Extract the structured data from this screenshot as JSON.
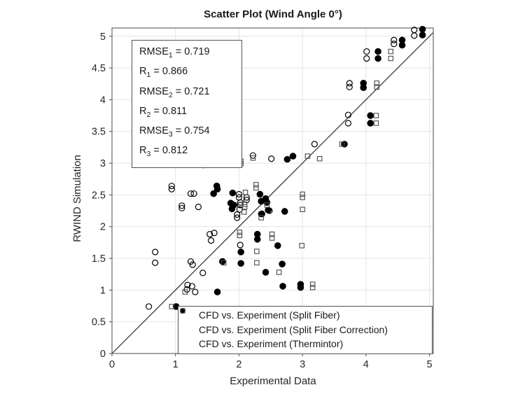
{
  "title": "Scatter Plot (Wind Angle 0°)",
  "stats_box": {
    "lines": [
      {
        "base": "RMSE",
        "sub": "1",
        "value": "0.719"
      },
      {
        "base": "R",
        "sub": "1",
        "value": "0.866"
      },
      {
        "base": "RMSE",
        "sub": "2",
        "value": "0.721"
      },
      {
        "base": "R",
        "sub": "2",
        "value": "0.811"
      },
      {
        "base": "RMSE",
        "sub": "3",
        "value": "0.754"
      },
      {
        "base": "R",
        "sub": "3",
        "value": "0.812"
      }
    ]
  },
  "colors": {
    "marker": "#000000",
    "square_marker": "#4a4a4a",
    "axis": "#666666",
    "grid": "#e4e4e4",
    "text": "#262626",
    "line": "#1a1a1a",
    "background": "#ffffff"
  },
  "chart_data": {
    "type": "scatter",
    "title": "Scatter Plot (Wind Angle 0°)",
    "xlabel": "Experimental Data",
    "ylabel": "RWIND Simulation",
    "xlim": [
      0,
      5.06
    ],
    "ylim": [
      0,
      5.13
    ],
    "xticks": [
      0,
      1,
      2,
      3,
      4,
      5
    ],
    "yticks": [
      0,
      0.5,
      1,
      1.5,
      2,
      2.5,
      3,
      3.5,
      4,
      4.5,
      5
    ],
    "grid": true,
    "legend_position": "south-east-inside",
    "reference_line": {
      "type": "identity",
      "label": "y = x"
    },
    "series": [
      {
        "name": "CFD vs. Experiment (Split Fiber)",
        "marker": "open-circle",
        "points": [
          [
            0.58,
            0.74
          ],
          [
            0.68,
            1.6
          ],
          [
            0.68,
            1.43
          ],
          [
            0.94,
            2.64
          ],
          [
            0.94,
            2.59
          ],
          [
            1.1,
            2.33
          ],
          [
            1.1,
            2.29
          ],
          [
            1.18,
            1.01
          ],
          [
            1.19,
            1.08
          ],
          [
            1.26,
            1.06
          ],
          [
            1.31,
            0.97
          ],
          [
            1.24,
            2.52
          ],
          [
            1.29,
            2.52
          ],
          [
            1.24,
            1.45
          ],
          [
            1.27,
            1.4
          ],
          [
            1.36,
            2.31
          ],
          [
            1.43,
            1.27
          ],
          [
            1.44,
            3.02
          ],
          [
            1.44,
            2.97
          ],
          [
            1.54,
            1.88
          ],
          [
            1.61,
            1.9
          ],
          [
            1.56,
            1.78
          ],
          [
            1.97,
            2.19
          ],
          [
            1.97,
            2.14
          ],
          [
            2.0,
            2.51
          ],
          [
            2.0,
            2.46
          ],
          [
            2.01,
            2.27
          ],
          [
            2.02,
            2.38
          ],
          [
            2.02,
            2.34
          ],
          [
            2.12,
            2.46
          ],
          [
            2.12,
            2.42
          ],
          [
            2.02,
            1.71
          ],
          [
            2.22,
            3.12
          ],
          [
            2.35,
            2.2
          ],
          [
            2.48,
            2.25
          ],
          [
            2.51,
            3.07
          ],
          [
            3.19,
            3.3
          ],
          [
            3.72,
            3.76
          ],
          [
            3.72,
            3.63
          ],
          [
            3.74,
            4.26
          ],
          [
            3.74,
            4.2
          ],
          [
            4.01,
            4.76
          ],
          [
            4.01,
            4.65
          ],
          [
            4.44,
            4.94
          ],
          [
            4.44,
            4.88
          ],
          [
            4.76,
            5.1
          ],
          [
            4.76,
            5.01
          ]
        ]
      },
      {
        "name": "CFD vs. Experiment (Split Fiber Correction)",
        "marker": "filled-circle",
        "points": [
          [
            1.01,
            0.74
          ],
          [
            1.66,
            0.97
          ],
          [
            1.74,
            1.45
          ],
          [
            1.6,
            2.52
          ],
          [
            1.65,
            2.64
          ],
          [
            1.66,
            2.59
          ],
          [
            1.75,
            3.03
          ],
          [
            1.76,
            2.98
          ],
          [
            1.87,
            2.37
          ],
          [
            1.9,
            2.53
          ],
          [
            1.92,
            2.34
          ],
          [
            1.89,
            2.28
          ],
          [
            2.03,
            1.6
          ],
          [
            2.03,
            1.42
          ],
          [
            2.29,
            1.88
          ],
          [
            2.29,
            1.8
          ],
          [
            2.33,
            2.51
          ],
          [
            2.35,
            2.4
          ],
          [
            2.42,
            2.44
          ],
          [
            2.44,
            2.38
          ],
          [
            2.46,
            2.26
          ],
          [
            2.36,
            2.2
          ],
          [
            2.42,
            1.28
          ],
          [
            2.61,
            1.7
          ],
          [
            2.68,
            1.41
          ],
          [
            2.69,
            1.06
          ],
          [
            2.72,
            2.24
          ],
          [
            2.76,
            3.06
          ],
          [
            2.85,
            3.11
          ],
          [
            2.97,
            1.09
          ],
          [
            2.97,
            1.04
          ],
          [
            3.66,
            3.3
          ],
          [
            3.96,
            4.26
          ],
          [
            3.96,
            4.19
          ],
          [
            4.07,
            3.75
          ],
          [
            4.07,
            3.63
          ],
          [
            4.19,
            4.76
          ],
          [
            4.19,
            4.65
          ],
          [
            4.57,
            4.94
          ],
          [
            4.57,
            4.86
          ],
          [
            4.89,
            5.11
          ],
          [
            4.89,
            5.02
          ]
        ]
      },
      {
        "name": "CFD vs. Experiment (Thermintor)",
        "marker": "open-square",
        "points": [
          [
            0.94,
            0.74
          ],
          [
            1.15,
            0.97
          ],
          [
            1.76,
            1.43
          ],
          [
            2.01,
            1.91
          ],
          [
            2.01,
            1.86
          ],
          [
            2.03,
            3.03
          ],
          [
            2.03,
            2.99
          ],
          [
            2.08,
            2.23
          ],
          [
            2.09,
            2.35
          ],
          [
            2.09,
            2.31
          ],
          [
            2.1,
            2.54
          ],
          [
            2.22,
            3.08
          ],
          [
            2.27,
            2.66
          ],
          [
            2.27,
            2.61
          ],
          [
            2.28,
            1.61
          ],
          [
            2.28,
            1.43
          ],
          [
            2.35,
            2.14
          ],
          [
            2.44,
            2.34
          ],
          [
            2.52,
            1.88
          ],
          [
            2.52,
            1.82
          ],
          [
            2.63,
            1.28
          ],
          [
            2.99,
            1.7
          ],
          [
            3.0,
            2.51
          ],
          [
            3.0,
            2.46
          ],
          [
            3.0,
            2.27
          ],
          [
            3.08,
            3.11
          ],
          [
            3.16,
            1.09
          ],
          [
            3.16,
            1.04
          ],
          [
            3.27,
            3.07
          ],
          [
            3.62,
            3.3
          ],
          [
            4.16,
            3.75
          ],
          [
            4.16,
            3.63
          ],
          [
            4.17,
            4.26
          ],
          [
            4.17,
            4.2
          ],
          [
            4.39,
            4.76
          ],
          [
            4.39,
            4.65
          ]
        ]
      }
    ]
  }
}
